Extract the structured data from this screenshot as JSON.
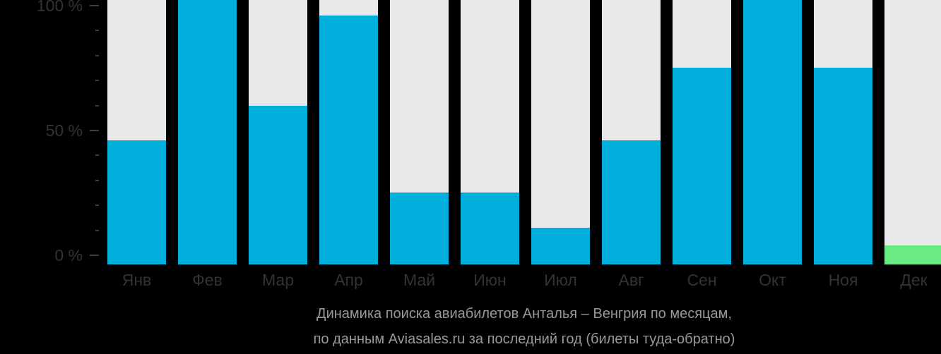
{
  "chart_data": {
    "type": "bar",
    "title": "Динамика поиска авиабилетов Анталья – Венгрия по месяцам,",
    "subtitle": "по данным Aviasales.ru за последний год (билеты туда-обратно)",
    "categories": [
      "Янв",
      "Фев",
      "Мар",
      "Апр",
      "Май",
      "Июн",
      "Июл",
      "Авг",
      "Сен",
      "Окт",
      "Ноя",
      "Дек"
    ],
    "values": [
      46,
      100,
      60,
      96,
      25,
      25,
      11,
      46,
      75,
      100,
      75,
      4
    ],
    "unit": "%",
    "ylim": [
      0,
      100
    ],
    "y_axis": {
      "labels": [
        {
          "value": 0,
          "text": "0 %"
        },
        {
          "value": 50,
          "text": "50 %"
        },
        {
          "value": 100,
          "text": "100 %"
        }
      ],
      "minor_tick_step": 10
    },
    "highlight": {
      "category": "Дек",
      "color": "#69ea85"
    },
    "colors": {
      "bar": "#00afdb",
      "bar_track": "#e9e9e9",
      "highlight": "#69ea85",
      "axis_text": "#333333",
      "tick": "#3f3f3f",
      "caption_text": "#999999",
      "background": "#000000"
    },
    "legend": "none",
    "grid": "off"
  }
}
